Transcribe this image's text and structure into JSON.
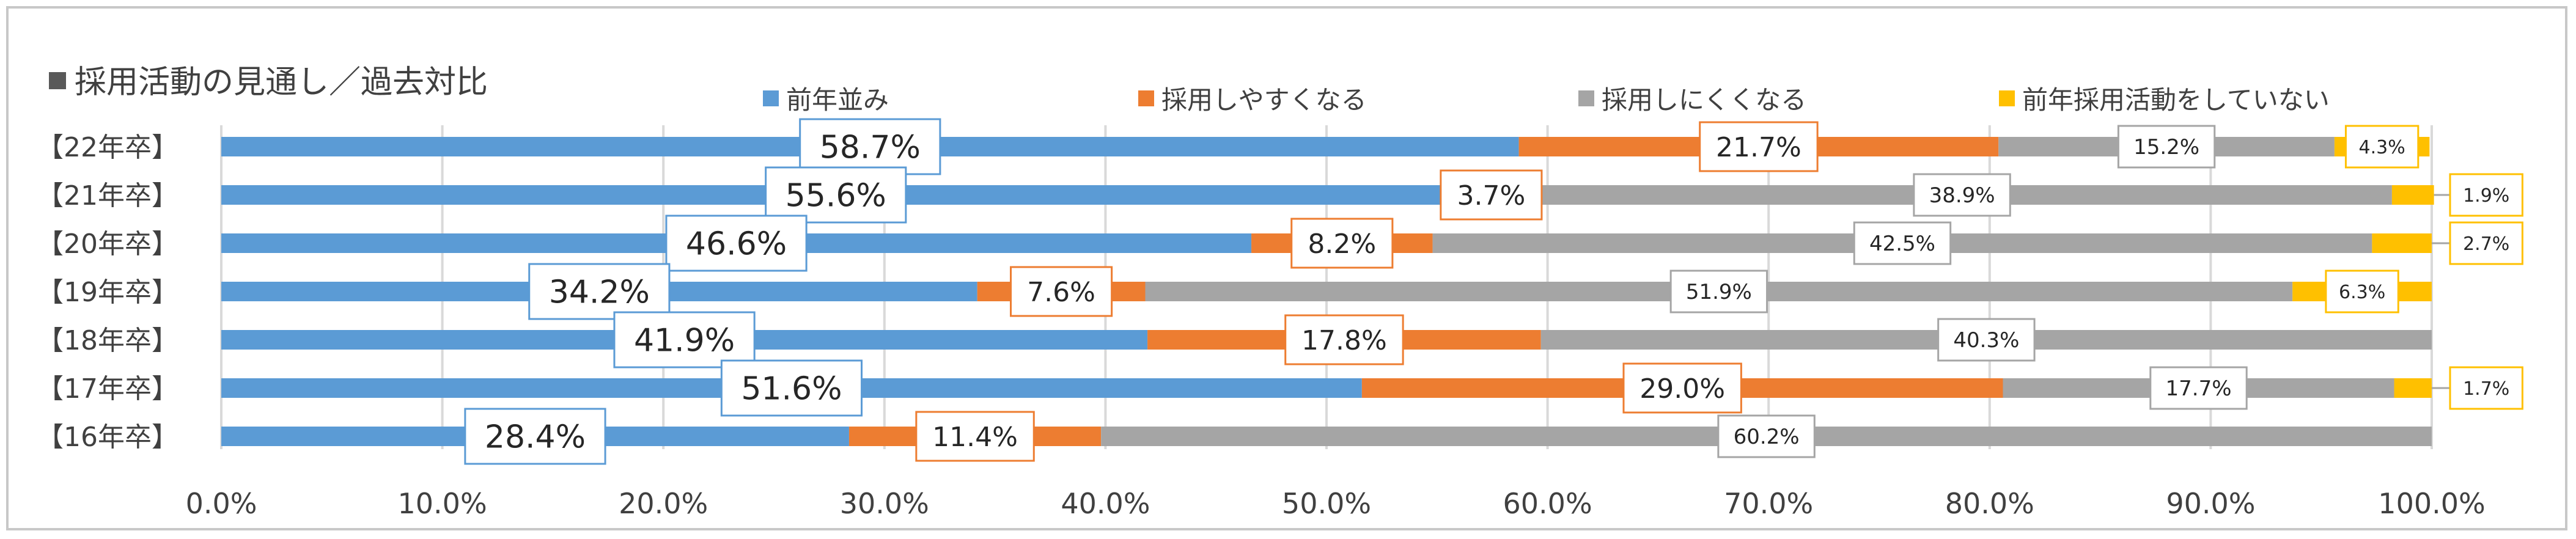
{
  "title": "採用活動の見通し／過去対比",
  "colors": {
    "prior_year": "#5b9bd5",
    "easier": "#ed7d31",
    "harder": "#a5a5a5",
    "not_done": "#ffc000",
    "grid": "#d9d9d9",
    "text": "#404040"
  },
  "legend": [
    {
      "label": "前年並み",
      "color": "#5b9bd5"
    },
    {
      "label": "採用しやすくなる",
      "color": "#ed7d31"
    },
    {
      "label": "採用しにくくなる",
      "color": "#a5a5a5"
    },
    {
      "label": "前年採用活動をしていない",
      "color": "#ffc000"
    }
  ],
  "chart_data": {
    "type": "bar",
    "orientation": "horizontal",
    "stacked": true,
    "title": "採用活動の見通し／過去対比",
    "categories": [
      "【22年卒】",
      "【21年卒】",
      "【20年卒】",
      "【19年卒】",
      "【18年卒】",
      "【17年卒】",
      "【16年卒】"
    ],
    "series": [
      {
        "name": "前年並み",
        "color": "#5b9bd5",
        "values": [
          58.7,
          55.6,
          46.6,
          34.2,
          41.9,
          51.6,
          28.4
        ],
        "labels": [
          "58.7%",
          "55.6%",
          "46.6%",
          "34.2%",
          "41.9%",
          "51.6%",
          "28.4%"
        ]
      },
      {
        "name": "採用しやすくなる",
        "color": "#ed7d31",
        "values": [
          21.7,
          3.7,
          8.2,
          7.6,
          17.8,
          29.0,
          11.4
        ],
        "labels": [
          "21.7%",
          "3.7%",
          "8.2%",
          "7.6%",
          "17.8%",
          "29.0%",
          "11.4%"
        ]
      },
      {
        "name": "採用しにくくなる",
        "color": "#a5a5a5",
        "values": [
          15.2,
          38.9,
          42.5,
          51.9,
          40.3,
          17.7,
          60.2
        ],
        "labels": [
          "15.2%",
          "38.9%",
          "42.5%",
          "51.9%",
          "40.3%",
          "17.7%",
          "60.2%"
        ]
      },
      {
        "name": "前年採用活動をしていない",
        "color": "#ffc000",
        "values": [
          4.3,
          1.9,
          2.7,
          6.3,
          0.0,
          1.7,
          0.0
        ],
        "labels": [
          "4.3%",
          "1.9%",
          "2.7%",
          "6.3%",
          null,
          "1.7%",
          null
        ]
      }
    ],
    "x_ticks": [
      "0.0%",
      "10.0%",
      "20.0%",
      "30.0%",
      "40.0%",
      "50.0%",
      "60.0%",
      "70.0%",
      "80.0%",
      "90.0%",
      "100.0%"
    ],
    "xlim": [
      0,
      100
    ],
    "grid": true,
    "legend_position": "top"
  }
}
